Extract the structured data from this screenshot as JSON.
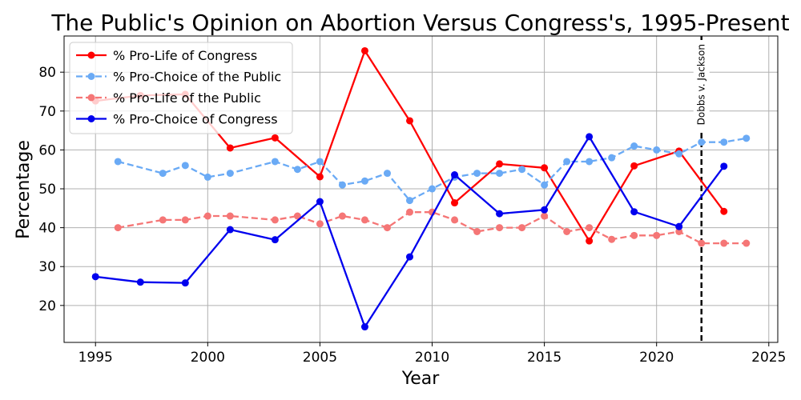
{
  "chart_data": {
    "type": "line",
    "title": "The Public's Opinion on Abortion Versus Congress's, 1995-Present",
    "xlabel": "Year",
    "ylabel": "Percentage",
    "xlim": [
      1993.6,
      2025.4
    ],
    "ylim": [
      10.5,
      89.3
    ],
    "xticks": [
      1995,
      2000,
      2005,
      2010,
      2015,
      2020,
      2025
    ],
    "yticks": [
      20,
      30,
      40,
      50,
      60,
      70,
      80
    ],
    "grid": true,
    "legend_position": "top-left",
    "annotations": [
      {
        "text": "Dobbs v. Jackson",
        "x": 2022,
        "style": "dashed-vertical-line",
        "color": "#000000"
      }
    ],
    "series": [
      {
        "name": "% Pro-Life of Congress",
        "color": "#ff0000",
        "dash": "solid",
        "x": [
          1995,
          1997,
          1999,
          2001,
          2003,
          2005,
          2007,
          2009,
          2011,
          2013,
          2015,
          2017,
          2019,
          2021,
          2023
        ],
        "y": [
          72.6,
          74.0,
          74.3,
          60.5,
          63.1,
          53.1,
          85.5,
          67.5,
          46.4,
          56.4,
          55.4,
          36.6,
          55.9,
          59.7,
          44.2
        ]
      },
      {
        "name": "% Pro-Choice of the Public",
        "color": "#6aaaf5",
        "dash": "dashed",
        "x": [
          1996,
          1998,
          1999,
          2000,
          2001,
          2003,
          2004,
          2005,
          2006,
          2007,
          2008,
          2009,
          2010,
          2011,
          2012,
          2013,
          2014,
          2015,
          2016,
          2017,
          2018,
          2019,
          2020,
          2021,
          2022,
          2023,
          2024
        ],
        "y": [
          57,
          54,
          56,
          53,
          54,
          57,
          55,
          57,
          51,
          52,
          54,
          47,
          50,
          53,
          54,
          54,
          55,
          51,
          57,
          57,
          58,
          61,
          60,
          59,
          62,
          62,
          63
        ]
      },
      {
        "name": "% Pro-Life of the Public",
        "color": "#f57676",
        "dash": "dashed",
        "x": [
          1996,
          1998,
          1999,
          2000,
          2001,
          2003,
          2004,
          2005,
          2006,
          2007,
          2008,
          2009,
          2010,
          2011,
          2012,
          2013,
          2014,
          2015,
          2016,
          2017,
          2018,
          2019,
          2020,
          2021,
          2022,
          2023,
          2024
        ],
        "y": [
          40,
          42,
          42,
          43,
          43,
          42,
          43,
          41,
          43,
          42,
          40,
          44,
          44,
          42,
          39,
          40,
          40,
          43,
          39,
          40,
          37,
          38,
          38,
          39,
          36,
          36,
          36
        ]
      },
      {
        "name": "% Pro-Choice of Congress",
        "color": "#0000ee",
        "dash": "solid",
        "x": [
          1995,
          1997,
          1999,
          2001,
          2003,
          2005,
          2007,
          2009,
          2011,
          2013,
          2015,
          2017,
          2019,
          2021,
          2023
        ],
        "y": [
          27.4,
          26.0,
          25.8,
          39.5,
          36.9,
          46.7,
          14.5,
          32.5,
          53.6,
          43.6,
          44.6,
          63.4,
          44.1,
          40.3,
          55.8
        ]
      }
    ]
  }
}
